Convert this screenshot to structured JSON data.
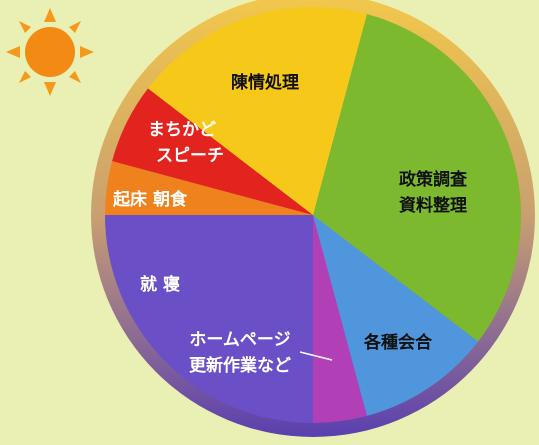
{
  "chart_data": {
    "type": "pie",
    "categories": [
      [
        "政策調査",
        "資料整理"
      ],
      [
        "各種会合"
      ],
      [
        "ホームページ",
        "更新作業など"
      ],
      [
        "就 寝"
      ],
      [
        "起床 朝食"
      ],
      [
        "まちかど",
        "スピーチ"
      ],
      [
        "陳情処理"
      ]
    ],
    "values": [
      7.5,
      2.5,
      1,
      6,
      1,
      1.5,
      4.5
    ],
    "colors": [
      "#7db92e",
      "#4f96dc",
      "#b13fb5",
      "#6a4fc6",
      "#f0821e",
      "#e2231e",
      "#f6c81a"
    ]
  }
}
